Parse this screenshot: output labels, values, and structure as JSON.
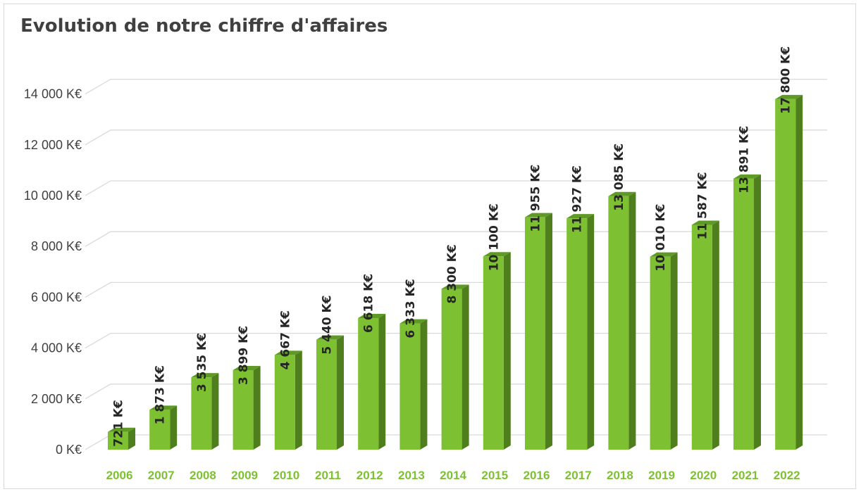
{
  "chart_data": {
    "type": "bar",
    "title": "Evolution de notre chiffre d'affaires",
    "categories": [
      "2006",
      "2007",
      "2008",
      "2009",
      "2010",
      "2011",
      "2012",
      "2013",
      "2014",
      "2015",
      "2016",
      "2017",
      "2018",
      "2019",
      "2020",
      "2021",
      "2022"
    ],
    "series": [
      {
        "values": [
          721,
          1873,
          3535,
          3899,
          4667,
          5440,
          6618,
          6333,
          8300,
          10100,
          11955,
          11927,
          13085,
          10010,
          11587,
          13891,
          17800
        ],
        "value_labels": [
          "721 K€",
          "1 873 K€",
          "3 535 K€",
          "3 899 K€",
          "4 667 K€",
          "5 440 K€",
          "6 618 K€",
          "6 333 K€",
          "8 300 K€",
          "10 100 K€",
          "11 955 K€",
          "11 927 K€",
          "13 085 K€",
          "10 010 K€",
          "11 587 K€",
          "13 891 K€",
          "17 800 K€"
        ],
        "heights_shown": [
          700,
          1570,
          2850,
          3130,
          3730,
          4330,
          5180,
          4970,
          6330,
          7610,
          9150,
          9110,
          9980,
          7600,
          8850,
          10670,
          13800
        ]
      }
    ],
    "yticks": [
      0,
      2000,
      4000,
      6000,
      8000,
      10000,
      12000,
      14000
    ],
    "ytick_labels": [
      "0 K€",
      "2 000 K€",
      "4 000 K€",
      "6 000 K€",
      "8 000 K€",
      "10 000 K€",
      "12 000 K€",
      "14 000 K€"
    ],
    "ylim": [
      0,
      14000
    ],
    "grid": true,
    "legend": "none",
    "style": "3d-column",
    "colors": {
      "bar_front": "#7dc132",
      "bar_side": "#4e7f1c",
      "bar_top": "#5e9a25",
      "gridline": "#d9d9d9",
      "xtick_text": "#7dc132",
      "ytick_text": "#404040"
    }
  }
}
